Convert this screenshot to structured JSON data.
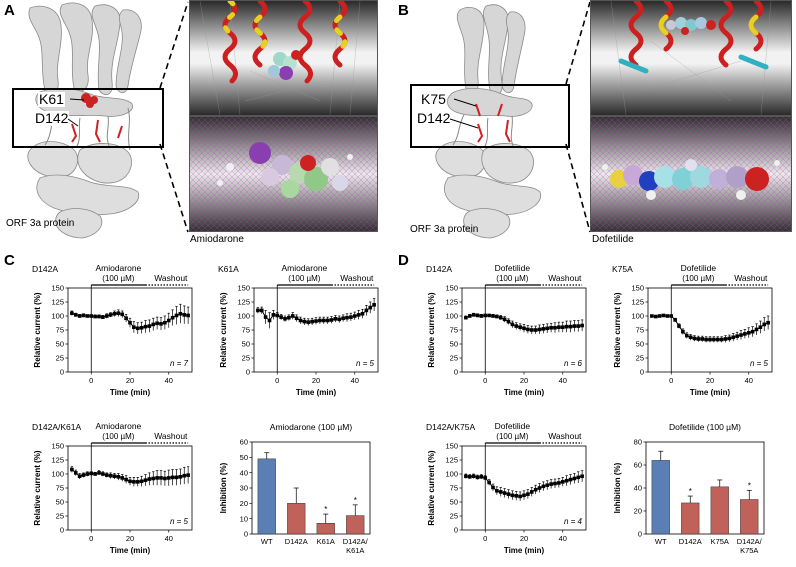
{
  "panels": {
    "A": {
      "label": "A",
      "residues": [
        "K61",
        "D142"
      ],
      "protein_caption": "ORF 3a protein",
      "drug_caption": "Amiodarone"
    },
    "B": {
      "label": "B",
      "residues": [
        "K75",
        "D142"
      ],
      "protein_caption": "ORF 3a protein",
      "drug_caption": "Dofetilide"
    },
    "C": {
      "label": "C"
    },
    "D": {
      "label": "D"
    }
  },
  "colors": {
    "protein": "#d8d8d8",
    "residue_red": "#cc2222",
    "helix_red": "#cc2020",
    "helix_yellow": "#e8d020",
    "bar_wt": "#5b7fb5",
    "bar_mut": "#c0625a",
    "mesh_magenta": "#c040c0"
  },
  "chart_data": [
    {
      "id": "C1",
      "type": "line",
      "title": "D142A",
      "drug_label": "Amiodarone",
      "conc_label": "(100 µM)",
      "washout_label": "Washout",
      "xlabel": "Time (min)",
      "ylabel": "Relative current (%)",
      "xlim": [
        -12,
        52
      ],
      "ylim": [
        0,
        150
      ],
      "xticks": [
        0,
        20,
        40
      ],
      "yticks": [
        0,
        25,
        50,
        75,
        100,
        125,
        150
      ],
      "n_label": "n = 7",
      "drug_interval": [
        0,
        28
      ],
      "washout_interval": [
        28,
        50
      ],
      "x": [
        -10,
        -8,
        -6,
        -4,
        -2,
        0,
        2,
        4,
        6,
        8,
        10,
        12,
        14,
        16,
        18,
        20,
        22,
        24,
        26,
        28,
        30,
        32,
        34,
        36,
        38,
        40,
        42,
        44,
        46,
        48,
        50
      ],
      "y": [
        105,
        102,
        100,
        101,
        100,
        100,
        99,
        99,
        98,
        100,
        102,
        104,
        105,
        103,
        96,
        88,
        80,
        78,
        79,
        81,
        82,
        85,
        87,
        86,
        88,
        92,
        97,
        101,
        104,
        102,
        101
      ],
      "err": [
        4,
        3,
        3,
        3,
        2,
        2,
        3,
        3,
        3,
        4,
        4,
        5,
        6,
        6,
        7,
        8,
        10,
        10,
        10,
        11,
        11,
        11,
        11,
        11,
        12,
        13,
        14,
        16,
        17,
        16,
        15
      ]
    },
    {
      "id": "C2",
      "type": "line",
      "title": "K61A",
      "drug_label": "Amiodarone",
      "conc_label": "(100 µM)",
      "washout_label": "Washout",
      "xlabel": "Time (min)",
      "ylabel": "Relative current (%)",
      "xlim": [
        -12,
        52
      ],
      "ylim": [
        0,
        150
      ],
      "xticks": [
        0,
        20,
        40
      ],
      "yticks": [
        0,
        25,
        50,
        75,
        100,
        125,
        150
      ],
      "n_label": "n = 5",
      "drug_interval": [
        0,
        28
      ],
      "washout_interval": [
        28,
        50
      ],
      "x": [
        -10,
        -8,
        -6,
        -4,
        -2,
        0,
        2,
        4,
        6,
        8,
        10,
        12,
        14,
        16,
        18,
        20,
        22,
        24,
        26,
        28,
        30,
        32,
        34,
        36,
        38,
        40,
        42,
        44,
        46,
        48,
        50
      ],
      "y": [
        110,
        110,
        98,
        92,
        102,
        101,
        98,
        95,
        97,
        100,
        96,
        92,
        90,
        89,
        90,
        91,
        92,
        92,
        92,
        93,
        95,
        94,
        96,
        97,
        98,
        100,
        102,
        104,
        110,
        115,
        120
      ],
      "err": [
        5,
        6,
        12,
        14,
        8,
        5,
        5,
        5,
        5,
        6,
        6,
        6,
        6,
        6,
        6,
        6,
        6,
        6,
        6,
        6,
        6,
        6,
        6,
        7,
        7,
        7,
        8,
        8,
        9,
        10,
        11
      ]
    },
    {
      "id": "C3",
      "type": "line",
      "title": "D142A/K61A",
      "drug_label": "Amiodarone",
      "conc_label": "(100 µM)",
      "washout_label": "Washout",
      "xlabel": "Time (min)",
      "ylabel": "Relative current (%)",
      "xlim": [
        -12,
        52
      ],
      "ylim": [
        0,
        150
      ],
      "xticks": [
        0,
        20,
        40
      ],
      "yticks": [
        0,
        25,
        50,
        75,
        100,
        125,
        150
      ],
      "n_label": "n = 5",
      "drug_interval": [
        0,
        28
      ],
      "washout_interval": [
        28,
        50
      ],
      "x": [
        -10,
        -8,
        -6,
        -4,
        -2,
        0,
        2,
        4,
        6,
        8,
        10,
        12,
        14,
        16,
        18,
        20,
        22,
        24,
        26,
        28,
        30,
        32,
        34,
        36,
        38,
        40,
        42,
        44,
        46,
        48,
        50
      ],
      "y": [
        108,
        102,
        96,
        98,
        100,
        101,
        100,
        102,
        100,
        98,
        97,
        96,
        95,
        93,
        90,
        87,
        86,
        86,
        87,
        89,
        91,
        92,
        93,
        93,
        92,
        93,
        94,
        94,
        95,
        97,
        98
      ],
      "err": [
        5,
        5,
        5,
        4,
        4,
        3,
        3,
        4,
        4,
        4,
        5,
        5,
        6,
        6,
        7,
        7,
        8,
        8,
        9,
        10,
        11,
        12,
        13,
        13,
        13,
        14,
        14,
        14,
        14,
        15,
        15
      ]
    },
    {
      "id": "C4",
      "type": "bar",
      "title": "Amiodarone (100 µM)",
      "ylabel": "Inhibition (%)",
      "ylim": [
        0,
        60
      ],
      "yticks": [
        0,
        10,
        20,
        30,
        40,
        50,
        60
      ],
      "categories": [
        "WT",
        "D142A",
        "K61A",
        "D142A/\nK61A"
      ],
      "values": [
        49,
        20,
        7,
        12
      ],
      "err": [
        4,
        10,
        6,
        7
      ],
      "significance": [
        "",
        "",
        "*",
        "*"
      ]
    },
    {
      "id": "D1",
      "type": "line",
      "title": "D142A",
      "drug_label": "Dofetilide",
      "conc_label": "(100 µM)",
      "washout_label": "Washout",
      "xlabel": "Time (min)",
      "ylabel": "Relative current (%)",
      "xlim": [
        -12,
        52
      ],
      "ylim": [
        0,
        150
      ],
      "xticks": [
        0,
        20,
        40
      ],
      "yticks": [
        0,
        25,
        50,
        75,
        100,
        125,
        150
      ],
      "n_label": "n = 6",
      "drug_interval": [
        0,
        28
      ],
      "washout_interval": [
        28,
        50
      ],
      "x": [
        -10,
        -8,
        -6,
        -4,
        -2,
        0,
        2,
        4,
        6,
        8,
        10,
        12,
        14,
        16,
        18,
        20,
        22,
        24,
        26,
        28,
        30,
        32,
        34,
        36,
        38,
        40,
        42,
        44,
        46,
        48,
        50
      ],
      "y": [
        97,
        100,
        102,
        101,
        100,
        101,
        101,
        100,
        99,
        97,
        94,
        90,
        85,
        82,
        80,
        78,
        76,
        75,
        75,
        76,
        77,
        78,
        79,
        79,
        80,
        80,
        81,
        81,
        82,
        82,
        83
      ],
      "err": [
        3,
        3,
        3,
        3,
        3,
        2,
        2,
        3,
        3,
        4,
        5,
        5,
        6,
        6,
        6,
        7,
        7,
        7,
        7,
        8,
        8,
        8,
        8,
        9,
        9,
        9,
        10,
        10,
        10,
        10,
        10
      ]
    },
    {
      "id": "D2",
      "type": "line",
      "title": "K75A",
      "drug_label": "Dofetilide",
      "conc_label": "(100 µM)",
      "washout_label": "Washout",
      "xlabel": "Time (min)",
      "ylabel": "Relative current (%)",
      "xlim": [
        -12,
        52
      ],
      "ylim": [
        0,
        150
      ],
      "xticks": [
        0,
        20,
        40
      ],
      "yticks": [
        0,
        25,
        50,
        75,
        100,
        125,
        150
      ],
      "n_label": "n = 5",
      "drug_interval": [
        0,
        28
      ],
      "washout_interval": [
        28,
        50
      ],
      "x": [
        -10,
        -8,
        -6,
        -4,
        -2,
        0,
        2,
        4,
        6,
        8,
        10,
        12,
        14,
        16,
        18,
        20,
        22,
        24,
        26,
        28,
        30,
        32,
        34,
        36,
        38,
        40,
        42,
        44,
        46,
        48,
        50
      ],
      "y": [
        100,
        99,
        100,
        101,
        100,
        100,
        93,
        82,
        72,
        65,
        62,
        60,
        59,
        59,
        58,
        58,
        58,
        58,
        58,
        59,
        60,
        62,
        64,
        66,
        68,
        70,
        72,
        76,
        80,
        85,
        88
      ],
      "err": [
        2,
        2,
        2,
        2,
        2,
        2,
        3,
        4,
        5,
        5,
        5,
        5,
        5,
        5,
        5,
        5,
        5,
        5,
        5,
        6,
        6,
        7,
        7,
        8,
        8,
        9,
        9,
        10,
        11,
        12,
        12
      ]
    },
    {
      "id": "D3",
      "type": "line",
      "title": "D142A/K75A",
      "drug_label": "Dofetilide",
      "conc_label": "(100 µM)",
      "washout_label": "Washout",
      "xlabel": "Time (min)",
      "ylabel": "Relative current (%)",
      "xlim": [
        -12,
        52
      ],
      "ylim": [
        0,
        150
      ],
      "xticks": [
        0,
        20,
        40
      ],
      "yticks": [
        0,
        25,
        50,
        75,
        100,
        125,
        150
      ],
      "n_label": "n = 4",
      "drug_interval": [
        0,
        28
      ],
      "washout_interval": [
        28,
        50
      ],
      "x": [
        -10,
        -8,
        -6,
        -4,
        -2,
        0,
        2,
        4,
        6,
        8,
        10,
        12,
        14,
        16,
        18,
        20,
        22,
        24,
        26,
        28,
        30,
        32,
        34,
        36,
        38,
        40,
        42,
        44,
        46,
        48,
        50
      ],
      "y": [
        96,
        95,
        96,
        94,
        95,
        93,
        85,
        76,
        70,
        68,
        66,
        64,
        62,
        61,
        60,
        62,
        64,
        68,
        72,
        75,
        78,
        80,
        82,
        83,
        84,
        86,
        88,
        90,
        92,
        94,
        96
      ],
      "err": [
        4,
        4,
        4,
        4,
        4,
        4,
        5,
        6,
        7,
        8,
        8,
        8,
        8,
        8,
        8,
        8,
        8,
        8,
        8,
        8,
        8,
        8,
        8,
        8,
        8,
        8,
        9,
        9,
        9,
        10,
        10
      ]
    },
    {
      "id": "D4",
      "type": "bar",
      "title": "Dofetilide (100 µM)",
      "ylabel": "Inhibition (%)",
      "ylim": [
        0,
        80
      ],
      "yticks": [
        0,
        20,
        40,
        60,
        80
      ],
      "categories": [
        "WT",
        "D142A",
        "K75A",
        "D142A/\nK75A"
      ],
      "values": [
        64,
        27,
        41,
        30
      ],
      "err": [
        8,
        6,
        6,
        8
      ],
      "significance": [
        "",
        "*",
        "",
        "*"
      ]
    }
  ]
}
